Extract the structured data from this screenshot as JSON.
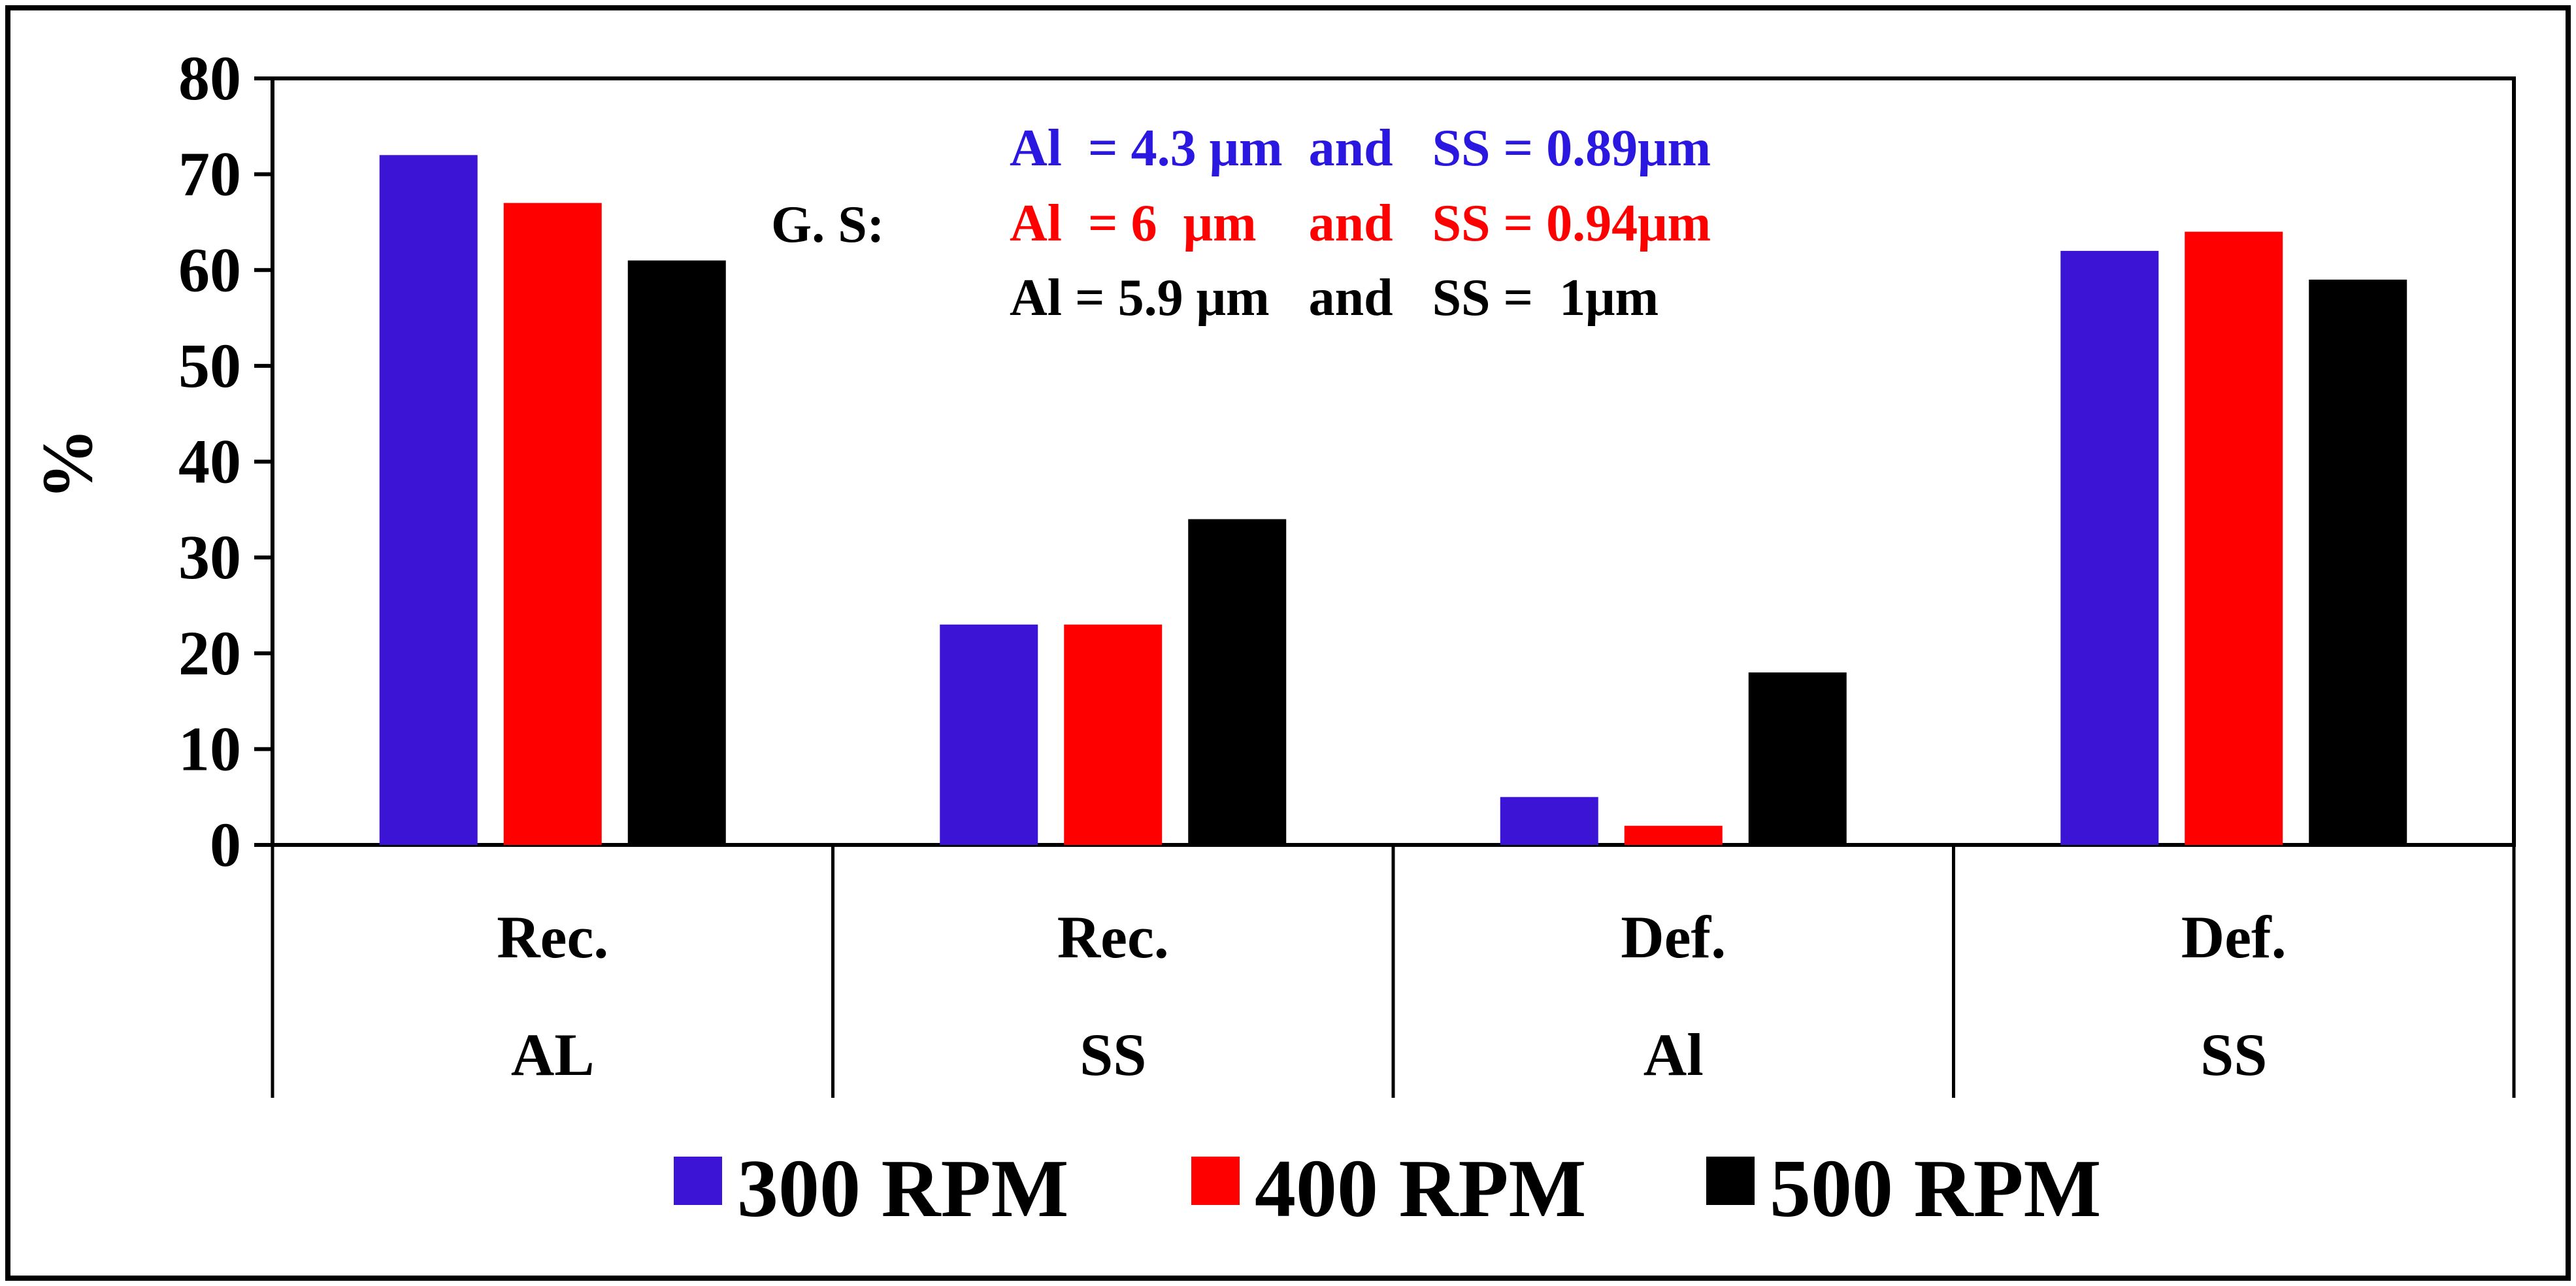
{
  "chart_data": {
    "type": "bar",
    "title": "",
    "xlabel": "",
    "ylabel": "%",
    "ylim": [
      0,
      80
    ],
    "yticks": [
      "0",
      "10",
      "20",
      "30",
      "40",
      "50",
      "60",
      "70",
      "80"
    ],
    "grid": false,
    "categories": [
      {
        "top": "Rec.",
        "bottom": "AL"
      },
      {
        "top": "Rec.",
        "bottom": "SS"
      },
      {
        "top": "Def.",
        "bottom": "Al"
      },
      {
        "top": "Def.",
        "bottom": "SS"
      }
    ],
    "series": [
      {
        "name": "300 RPM",
        "color": "#3B14D6",
        "values": [
          72,
          23,
          5,
          62
        ]
      },
      {
        "name": "400 RPM",
        "color": "#FF0000",
        "values": [
          67,
          23,
          2,
          64
        ]
      },
      {
        "name": "500 RPM",
        "color": "#000000",
        "values": [
          61,
          34,
          18,
          59
        ]
      }
    ],
    "legend_position": "bottom",
    "annotation": {
      "prefix": "G. S:",
      "lines": [
        {
          "text": "Al  = 4.3 μm  and   SS = 0.89μm",
          "color": "#2A17E0"
        },
        {
          "text": "Al  = 6  μm    and   SS = 0.94μm",
          "color": "#FF0000"
        },
        {
          "text": "Al = 5.9 μm   and   SS =  1μm",
          "color": "#000000"
        }
      ]
    }
  }
}
